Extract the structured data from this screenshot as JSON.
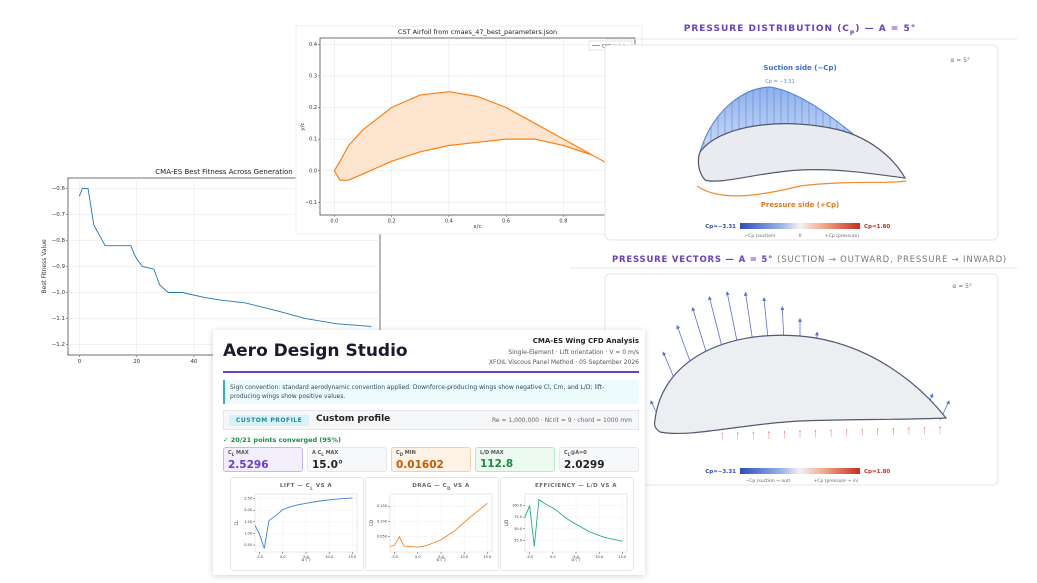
{
  "chart_data": [
    {
      "type": "line",
      "title": "CMA-ES Best Fitness Across Generation",
      "x_label": "Gener",
      "y_label": "Best Fitness Value",
      "x": [
        0,
        1,
        3,
        4,
        5,
        6,
        7,
        9,
        18,
        19,
        20,
        22,
        26,
        27,
        28,
        30,
        31,
        36,
        44,
        50,
        58,
        69,
        79,
        90,
        102
      ],
      "values": [
        -0.63,
        -0.6,
        -0.6,
        -0.67,
        -0.74,
        -0.76,
        -0.78,
        -0.82,
        -0.82,
        -0.85,
        -0.87,
        -0.9,
        -0.91,
        -0.94,
        -0.97,
        -0.99,
        -1.0,
        -1.0,
        -1.02,
        -1.03,
        -1.04,
        -1.07,
        -1.1,
        -1.12,
        -1.13
      ],
      "color": "#1f77b4",
      "xlim": [
        -4,
        105
      ],
      "ylim": [
        -1.24,
        -0.56
      ],
      "xticks": [
        0,
        20,
        40
      ],
      "yticks": [
        {
          "value": -0.6,
          "label": "−0.6"
        },
        {
          "value": -0.7,
          "label": "−0.7"
        },
        {
          "value": -0.8,
          "label": "−0.8"
        },
        {
          "value": -0.9,
          "label": "−0.9"
        },
        {
          "value": -1.0,
          "label": "−1.0"
        },
        {
          "value": -1.1,
          "label": "−1.1"
        },
        {
          "value": -1.2,
          "label": "−1.2"
        }
      ],
      "grid": true
    },
    {
      "type": "line",
      "title": "CST Airfoil from cmaes_47_best_parameters.json",
      "x_label": "x/c",
      "y_label": "y/c",
      "x": [
        1.0,
        0.9,
        0.8,
        0.7,
        0.6,
        0.5,
        0.4,
        0.3,
        0.2,
        0.1,
        0.05,
        0.02,
        0.0,
        0.02,
        0.05,
        0.1,
        0.2,
        0.3,
        0.4,
        0.5,
        0.6,
        0.7,
        0.8,
        0.9,
        1.0
      ],
      "series": [
        {
          "name": "CST Airfoil",
          "color": "#ff7f0e",
          "fill": "#fde5cf",
          "values": [
            0.0,
            0.05,
            0.1,
            0.15,
            0.2,
            0.235,
            0.25,
            0.24,
            0.2,
            0.13,
            0.08,
            0.03,
            0.0,
            -0.03,
            -0.03,
            -0.01,
            0.03,
            0.06,
            0.08,
            0.09,
            0.1,
            0.1,
            0.08,
            0.05,
            0.0
          ]
        }
      ],
      "xlim": [
        -0.05,
        1.05
      ],
      "ylim": [
        -0.14,
        0.42
      ],
      "xticks": [
        {
          "value": 0,
          "label": "0.0"
        },
        0.2,
        0.4,
        0.6,
        0.8,
        {
          "value": 1,
          "label": "1.0"
        }
      ],
      "yticks": [
        {
          "value": -0.1,
          "label": "−0.1"
        },
        {
          "value": 0,
          "label": "0.0"
        },
        0.1,
        0.2,
        0.3,
        0.4
      ],
      "grid": true,
      "legend": "upper right"
    },
    {
      "type": "line",
      "title_parts": [
        "LIFT — C",
        "L",
        " VS A"
      ],
      "x_label": "α (°)",
      "y_label": "CL",
      "x": [
        -6,
        -5,
        -4,
        -3,
        -2,
        -1,
        0,
        1,
        2,
        3,
        5,
        8,
        11,
        15
      ],
      "values": [
        1.35,
        0.95,
        0.35,
        1.55,
        1.7,
        1.85,
        2.03,
        2.1,
        2.17,
        2.22,
        2.3,
        2.4,
        2.47,
        2.53
      ],
      "color": "#3b82d6",
      "xlim": [
        -6,
        16
      ],
      "ylim": [
        0.2,
        2.7
      ],
      "xticks": [
        {
          "value": -5,
          "label": "-5.0"
        },
        {
          "value": 0,
          "label": "0.0"
        },
        {
          "value": 5,
          "label": "5.0"
        },
        {
          "value": 10,
          "label": "10.0"
        },
        {
          "value": 15,
          "label": "15.0"
        }
      ],
      "yticks": [
        {
          "value": 0.5,
          "label": "0.50"
        },
        {
          "value": 1,
          "label": "1.00"
        },
        {
          "value": 1.5,
          "label": "1.50"
        },
        {
          "value": 2,
          "label": "2.00"
        },
        {
          "value": 2.5,
          "label": "2.50"
        }
      ],
      "grid": true
    },
    {
      "type": "line",
      "title_parts": [
        "DRAG — C",
        "D",
        " VS A"
      ],
      "x_label": "α (°)",
      "y_label": "CD",
      "x": [
        -6,
        -5,
        -4,
        -3,
        -2,
        -1,
        0,
        1,
        2,
        3,
        5,
        8,
        11,
        15
      ],
      "values": [
        0.018,
        0.022,
        0.05,
        0.02,
        0.018,
        0.017,
        0.016,
        0.018,
        0.022,
        0.028,
        0.04,
        0.07,
        0.11,
        0.16
      ],
      "color": "#f28a2e",
      "xlim": [
        -6,
        16
      ],
      "ylim": [
        0,
        0.19
      ],
      "xticks": [
        {
          "value": -5,
          "label": "-5.0"
        },
        {
          "value": 0,
          "label": "0.0"
        },
        {
          "value": 5,
          "label": "5.0"
        },
        {
          "value": 10,
          "label": "10.0"
        },
        {
          "value": 15,
          "label": "15.0"
        }
      ],
      "yticks": [
        {
          "value": 0.05,
          "label": "0.050"
        },
        {
          "value": 0.1,
          "label": "0.100"
        },
        {
          "value": 0.15,
          "label": "0.150"
        }
      ],
      "grid": true
    },
    {
      "type": "line",
      "title_parts": [
        "EFFICIENCY — L/D VS A"
      ],
      "x_label": "α (°)",
      "y_label": "L/D",
      "x": [
        -6,
        -5,
        -4,
        -3,
        -2,
        -1,
        0,
        1,
        2,
        3,
        5,
        8,
        11,
        15
      ],
      "values": [
        75,
        100,
        12,
        112.8,
        106,
        100,
        95,
        88,
        80,
        72,
        60,
        43,
        32,
        23
      ],
      "color": "#20b07a",
      "xlim": [
        -6,
        16
      ],
      "ylim": [
        0,
        125
      ],
      "xticks": [
        {
          "value": -5,
          "label": "-5.0"
        },
        {
          "value": 0,
          "label": "0.0"
        },
        {
          "value": 5,
          "label": "5.0"
        },
        {
          "value": 10,
          "label": "10.0"
        },
        {
          "value": 15,
          "label": "15.0"
        }
      ],
      "yticks": [
        {
          "value": 25,
          "label": "25.0"
        },
        {
          "value": 50,
          "label": "50.0"
        },
        {
          "value": 75,
          "label": "75.0"
        },
        {
          "value": 100,
          "label": "100.0"
        }
      ],
      "grid": true
    }
  ],
  "pressure_distribution": {
    "title_parts": [
      "PRESSURE DISTRIBUTION (C",
      "P",
      ") — A = 5°"
    ],
    "alpha": "α = 5°",
    "suction_label": "Suction side (−Cp)",
    "cp_min_note": "Cp = −3.31",
    "pressure_label": "Pressure side (+Cp)",
    "colorbar": {
      "min": "Cp=−3.31",
      "max": "Cp=1.80",
      "left": "−Cp (suction)",
      "mid": "0",
      "right": "+Cp (pressure)"
    }
  },
  "pressure_vectors": {
    "title": "PRESSURE VECTORS — A = 5°",
    "subtitle": "(SUCTION → OUTWARD, PRESSURE → INWARD)",
    "alpha": "α = 5°",
    "colorbar": {
      "min": "Cp=−3.31",
      "max": "Cp=1.80",
      "left": "−Cp (suction → out)",
      "right": "+Cp (pressure → in)"
    }
  },
  "app": {
    "title": "Aero Design Studio",
    "analysis_title": "CMA-ES Wing CFD Analysis",
    "meta_1": "Single-Element · Lift orientation · V = 0 m/s",
    "meta_2": "XFOIL Viscous Panel Method · 05 September 2026",
    "notice": "Sign convention: standard aerodynamic convention applied. Downforce-producing wings show negative Cl, Cm, and L/D; lift-producing wings show positive values.",
    "profile_badge": "CUSTOM PROFILE",
    "profile_name": "Custom profile",
    "conditions": "Re = 1,000,000 · Ncrit = 9 · chord = 1000 mm",
    "convergence": "✓ 20/21 points converged (95%)",
    "metrics": [
      {
        "label": [
          "C",
          "L",
          " MAX"
        ],
        "value": "2.5296"
      },
      {
        "label": [
          "A C",
          "L",
          " MAX"
        ],
        "value": "15.0°"
      },
      {
        "label": [
          "C",
          "D",
          " MIN"
        ],
        "value": "0.01602"
      },
      {
        "label": [
          "L/D MAX"
        ],
        "value": "112.8"
      },
      {
        "label": [
          "C",
          "L",
          "@A=0"
        ],
        "value": "2.0299"
      }
    ]
  }
}
